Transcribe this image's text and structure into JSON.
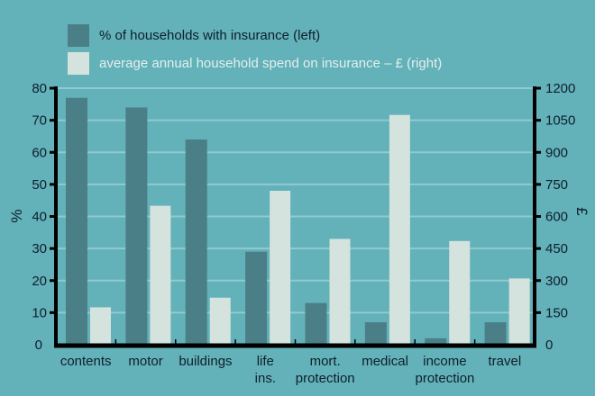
{
  "colors": {
    "background": "#63b1b9",
    "series_dark": "#4a7f88",
    "series_light": "#d4e3dd",
    "grid": "#8fcad0",
    "axis": "#000000"
  },
  "chart_data": {
    "type": "bar",
    "title": "",
    "categories": [
      [
        "contents"
      ],
      [
        "motor"
      ],
      [
        "buildings"
      ],
      [
        "life",
        "ins."
      ],
      [
        "mort.",
        "protection"
      ],
      [
        "medical"
      ],
      [
        "income",
        "protection"
      ],
      [
        "travel"
      ]
    ],
    "series": [
      {
        "name": "% of households with insurance (left)",
        "axis": "left",
        "values": [
          77,
          74,
          64,
          29,
          13,
          7,
          2,
          7
        ]
      },
      {
        "name": "average annual household spend on insurance – £ (right)",
        "axis": "right",
        "values": [
          175,
          650,
          220,
          720,
          495,
          1075,
          485,
          310
        ]
      }
    ],
    "ylabel": "%",
    "ylabel_right": "£",
    "ylim": [
      0,
      80
    ],
    "ylim_right": [
      0,
      1200
    ],
    "yticks": [
      0,
      10,
      20,
      30,
      40,
      50,
      60,
      70,
      80
    ],
    "yticks_right": [
      0,
      150,
      300,
      450,
      600,
      750,
      900,
      1050,
      1200
    ],
    "grid": true,
    "legend_position": "top-left"
  }
}
